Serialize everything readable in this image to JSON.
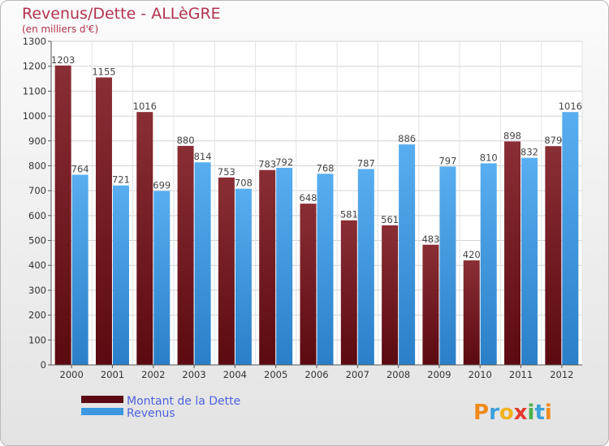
{
  "chart_data": {
    "type": "bar",
    "title": "Revenus/Dette - ALLèGRE",
    "subtitle": "(en milliers d'€)",
    "categories": [
      "2000",
      "2001",
      "2002",
      "2003",
      "2004",
      "2005",
      "2006",
      "2007",
      "2008",
      "2009",
      "2010",
      "2011",
      "2012"
    ],
    "series": [
      {
        "name": "Montant de la Dette",
        "color": "#7a1e24",
        "values": [
          1203,
          1155,
          1016,
          880,
          753,
          783,
          648,
          581,
          561,
          483,
          420,
          898,
          879
        ]
      },
      {
        "name": "Revenus",
        "color": "#4aa3e6",
        "values": [
          764,
          721,
          699,
          814,
          708,
          792,
          768,
          787,
          886,
          797,
          810,
          832,
          1016
        ]
      }
    ],
    "ylim": [
      0,
      1300
    ],
    "yticks": [
      0,
      100,
      200,
      300,
      400,
      500,
      600,
      700,
      800,
      900,
      1000,
      1100,
      1200,
      1300
    ],
    "grid": true,
    "legend_position": "bottom-left"
  },
  "logo_text": "Proxiti"
}
